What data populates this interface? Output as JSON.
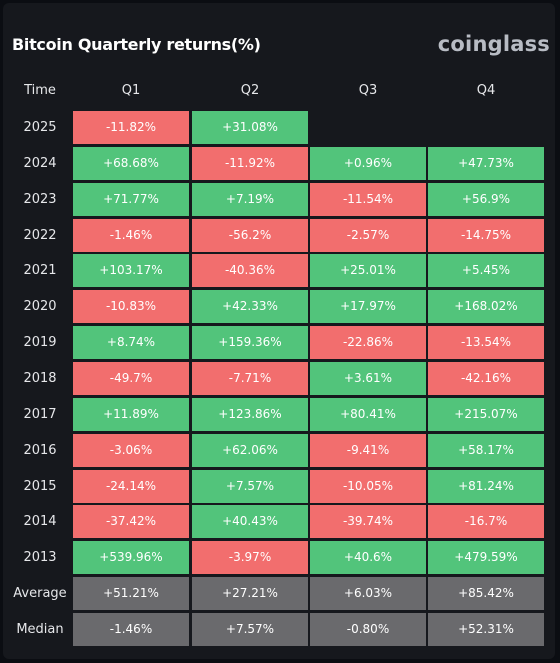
{
  "header": {
    "title": "Bitcoin Quarterly returns(%)",
    "logo": "coinglass"
  },
  "table": {
    "columns": [
      "Time",
      "Q1",
      "Q2",
      "Q3",
      "Q4"
    ],
    "rows": [
      {
        "label": "2025",
        "values": [
          "-11.82%",
          "+31.08%",
          "",
          ""
        ]
      },
      {
        "label": "2024",
        "values": [
          "+68.68%",
          "-11.92%",
          "+0.96%",
          "+47.73%"
        ]
      },
      {
        "label": "2023",
        "values": [
          "+71.77%",
          "+7.19%",
          "-11.54%",
          "+56.9%"
        ]
      },
      {
        "label": "2022",
        "values": [
          "-1.46%",
          "-56.2%",
          "-2.57%",
          "-14.75%"
        ]
      },
      {
        "label": "2021",
        "values": [
          "+103.17%",
          "-40.36%",
          "+25.01%",
          "+5.45%"
        ]
      },
      {
        "label": "2020",
        "values": [
          "-10.83%",
          "+42.33%",
          "+17.97%",
          "+168.02%"
        ]
      },
      {
        "label": "2019",
        "values": [
          "+8.74%",
          "+159.36%",
          "-22.86%",
          "-13.54%"
        ]
      },
      {
        "label": "2018",
        "values": [
          "-49.7%",
          "-7.71%",
          "+3.61%",
          "-42.16%"
        ]
      },
      {
        "label": "2017",
        "values": [
          "+11.89%",
          "+123.86%",
          "+80.41%",
          "+215.07%"
        ]
      },
      {
        "label": "2016",
        "values": [
          "-3.06%",
          "+62.06%",
          "-9.41%",
          "+58.17%"
        ]
      },
      {
        "label": "2015",
        "values": [
          "-24.14%",
          "+7.57%",
          "-10.05%",
          "+81.24%"
        ]
      },
      {
        "label": "2014",
        "values": [
          "-37.42%",
          "+40.43%",
          "-39.74%",
          "-16.7%"
        ]
      },
      {
        "label": "2013",
        "values": [
          "+539.96%",
          "-3.97%",
          "+40.6%",
          "+479.59%"
        ]
      }
    ],
    "summary": [
      {
        "label": "Average",
        "values": [
          "+51.21%",
          "+27.21%",
          "+6.03%",
          "+85.42%"
        ]
      },
      {
        "label": "Median",
        "values": [
          "-1.46%",
          "+7.57%",
          "-0.80%",
          "+52.31%"
        ]
      }
    ]
  },
  "colors": {
    "positive": "#52c47b",
    "negative": "#f26e6e",
    "summary": "#6a6a6d",
    "background": "#16181d"
  }
}
